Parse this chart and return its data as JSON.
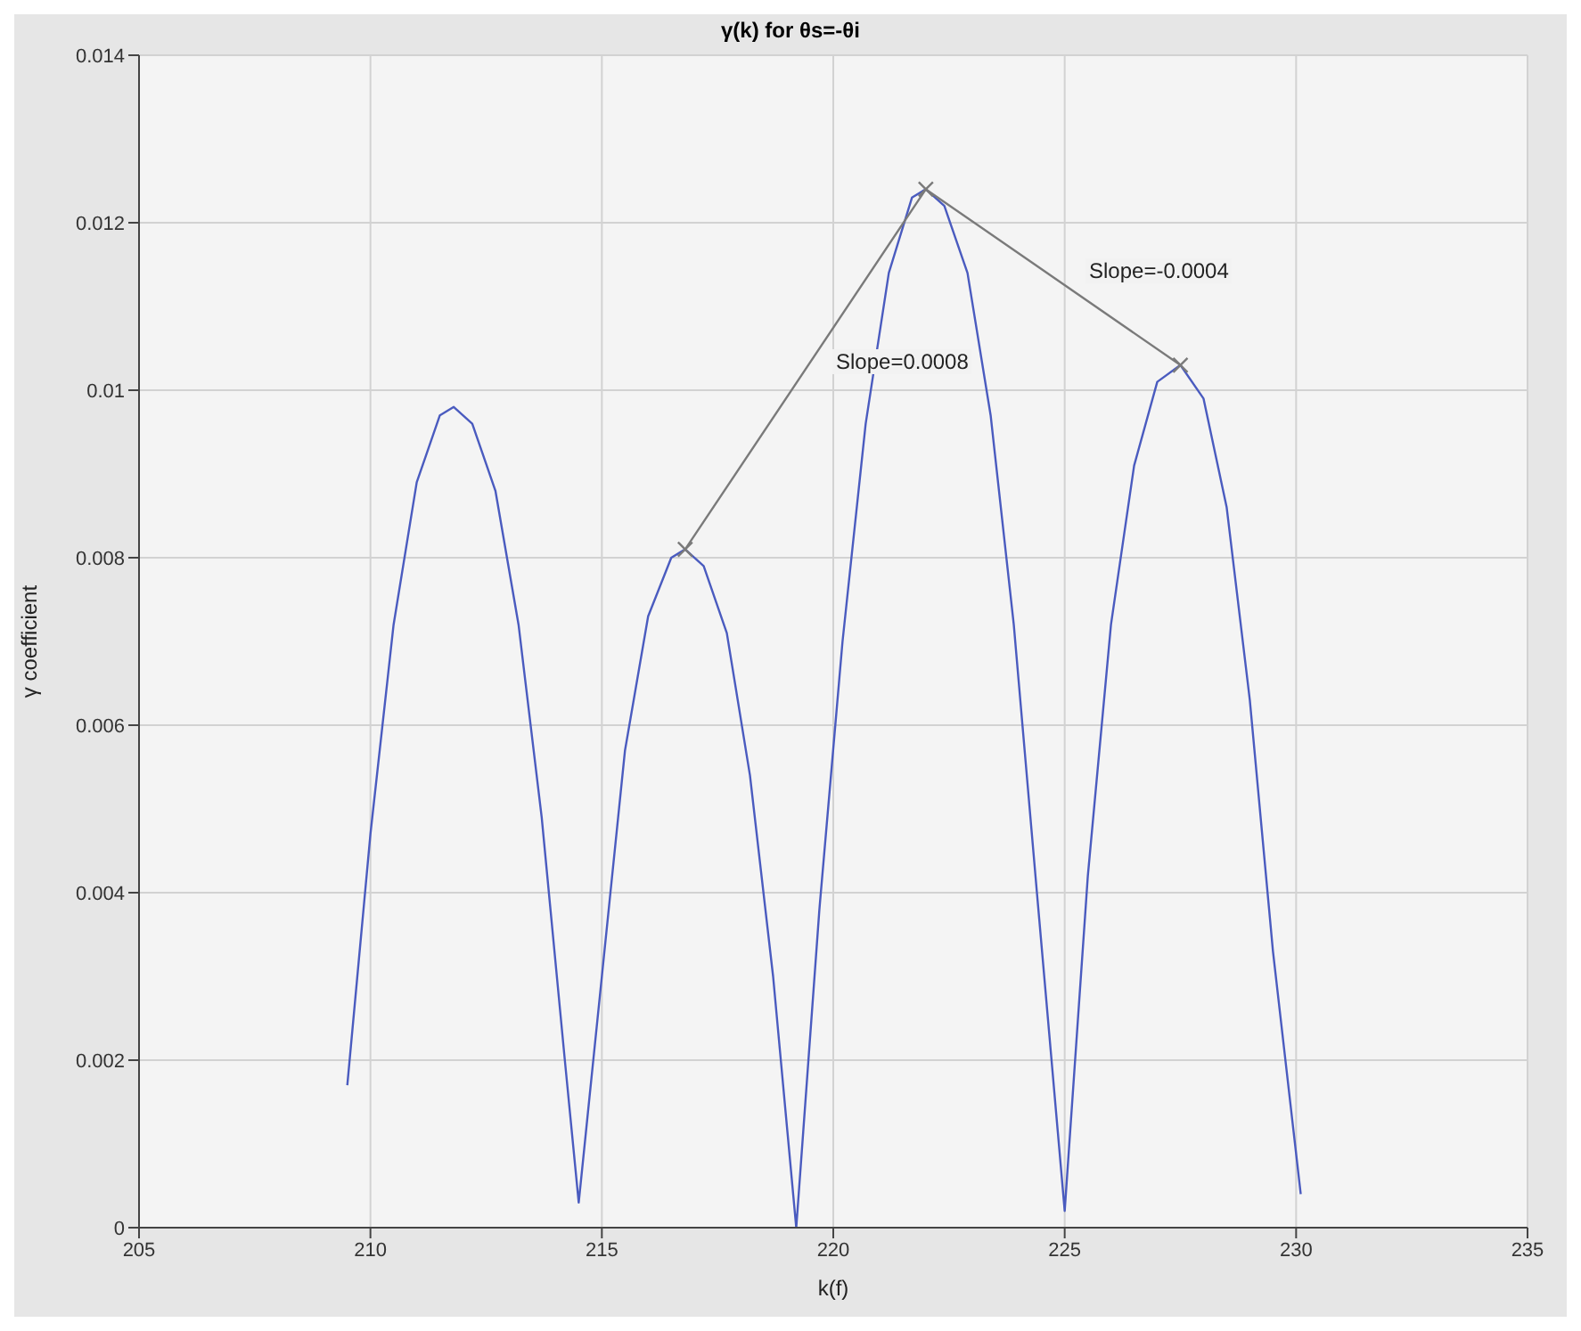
{
  "chart_data": {
    "type": "line",
    "title": "γ(k) for θs=-θi",
    "xlabel": "k(f)",
    "ylabel": "γ coefficient",
    "xlim": [
      205,
      235
    ],
    "xticks": [
      205,
      210,
      215,
      220,
      225,
      230,
      235
    ],
    "ylim": [
      0,
      0.014
    ],
    "yticks": [
      0,
      0.002,
      0.004,
      0.006,
      0.008,
      0.01,
      0.012,
      0.014
    ],
    "grid": true,
    "series": [
      {
        "color": "#4a5bbf",
        "marker": "none",
        "x": [
          209.5,
          210,
          210.5,
          211,
          211.5,
          211.8,
          212.2,
          212.7,
          213.2,
          213.7,
          214.2,
          214.5,
          215,
          215.5,
          216,
          216.5,
          216.8,
          217.2,
          217.7,
          218.2,
          218.7,
          219.2,
          219.7,
          220.2,
          220.7,
          221.2,
          221.7,
          222,
          222.4,
          222.9,
          223.4,
          223.9,
          224.4,
          225,
          225.5,
          226,
          226.5,
          227,
          227.5,
          228,
          228.5,
          229,
          229.5,
          230.1
        ],
        "values": [
          0.0017,
          0.0047,
          0.0072,
          0.0089,
          0.0097,
          0.0098,
          0.0096,
          0.0088,
          0.0072,
          0.0049,
          0.002,
          0.0003,
          0.003,
          0.0057,
          0.0073,
          0.008,
          0.0081,
          0.0079,
          0.0071,
          0.0054,
          0.003,
          0,
          0.0038,
          0.007,
          0.0096,
          0.0114,
          0.0123,
          0.0124,
          0.0122,
          0.0114,
          0.0097,
          0.0072,
          0.004,
          0.0002,
          0.0042,
          0.0072,
          0.0091,
          0.0101,
          0.0103,
          0.0099,
          0.0086,
          0.0063,
          0.0033,
          0.0004
        ]
      },
      {
        "color": "#7a7a7a",
        "marker": "cross",
        "x": [
          216.8,
          222,
          227.5
        ],
        "values": [
          0.0081,
          0.0124,
          0.0103
        ]
      }
    ],
    "annotations": [
      "Slope=0.0008",
      "Slope=-0.0004"
    ]
  }
}
